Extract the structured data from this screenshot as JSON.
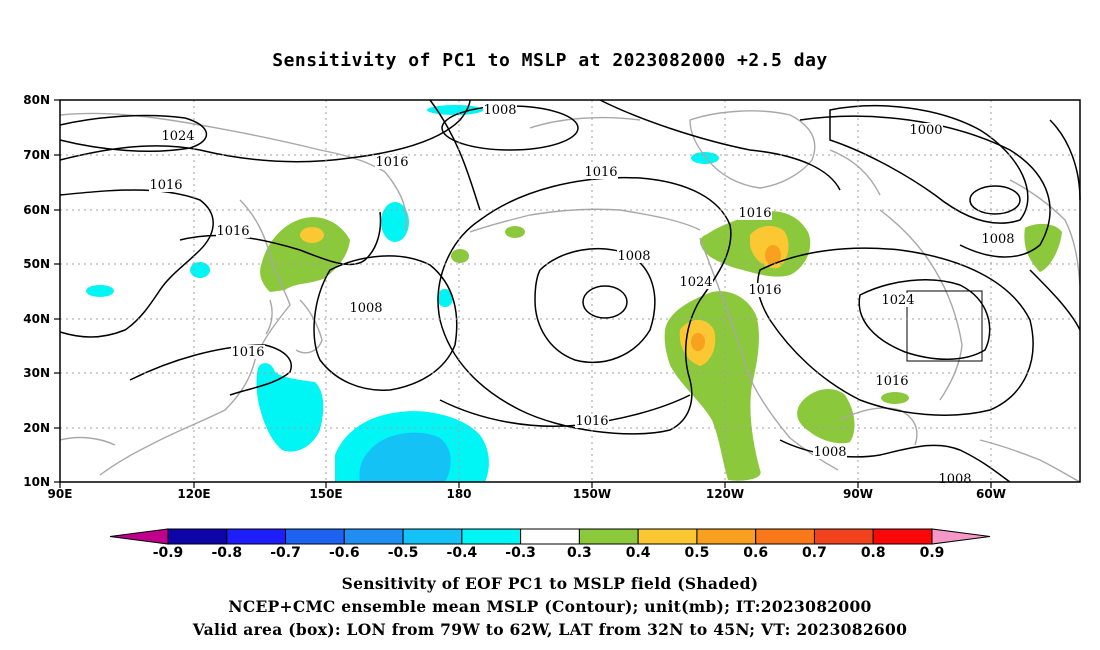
{
  "title": "Sensitivity of PC1 to MSLP at 2023082000 +2.5 day",
  "captions": [
    "Sensitivity of EOF PC1 to MSLP field (Shaded)",
    "NCEP+CMC ensemble mean MSLP (Contour); unit(mb); IT:2023082000",
    "Valid area (box): LON from 79W to 62W, LAT from 32N to 45N; VT: 2023082600"
  ],
  "lat_labels": [
    "80N",
    "70N",
    "60N",
    "50N",
    "40N",
    "30N",
    "20N",
    "10N"
  ],
  "lon_labels": [
    "90E",
    "120E",
    "150E",
    "180",
    "150W",
    "120W",
    "90W",
    "60W"
  ],
  "contour_labels": [
    "1008",
    "1024",
    "1016",
    "1016",
    "1016",
    "1008",
    "1016",
    "1016",
    "1008",
    "1024",
    "1016",
    "1016",
    "1016",
    "1000",
    "1008",
    "1024",
    "1016",
    "1008",
    "1008"
  ],
  "colorbar": {
    "labels": [
      "-0.9",
      "-0.8",
      "-0.7",
      "-0.6",
      "-0.5",
      "-0.4",
      "-0.3",
      "0.3",
      "0.4",
      "0.5",
      "0.6",
      "0.7",
      "0.8",
      "0.9"
    ],
    "colors": [
      "#c0008c",
      "#0d05a8",
      "#1e1efa",
      "#1e62f0",
      "#1f8ef0",
      "#15c2f5",
      "#00f5f5",
      "#ffffff",
      "#8cc83c",
      "#fbc834",
      "#f8a020",
      "#f8781a",
      "#f0421c",
      "#f80808",
      "#f598c8"
    ]
  },
  "shading_colors": {
    "pos03": "#8cc83c",
    "pos04": "#fbc834",
    "pos05": "#f8a020",
    "neg03": "#00f5f5",
    "neg04": "#15c2f5",
    "coast": "#a8a8a8",
    "grid": "#a0a0a0"
  }
}
